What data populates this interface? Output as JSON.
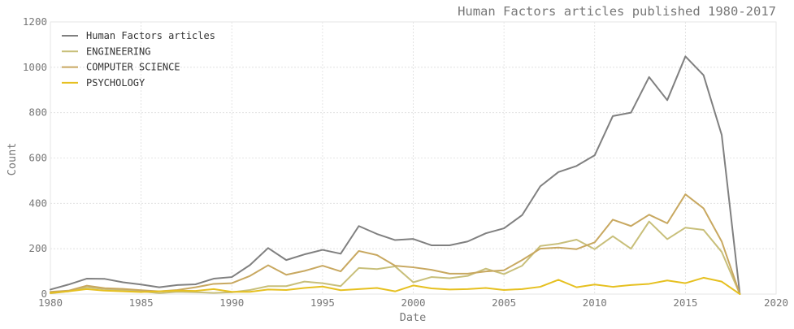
{
  "chart_data": {
    "type": "line",
    "title": "Human Factors articles published 1980-2017",
    "xlabel": "Date",
    "ylabel": "Count",
    "xlim": [
      1980,
      2020
    ],
    "ylim": [
      0,
      1200
    ],
    "xticks": [
      1980,
      1985,
      1990,
      1995,
      2000,
      2005,
      2010,
      2015,
      2020
    ],
    "yticks": [
      0,
      200,
      400,
      600,
      800,
      1000,
      1200
    ],
    "grid": true,
    "legend_position": "top-left",
    "x": [
      1980,
      1981,
      1982,
      1983,
      1984,
      1985,
      1986,
      1987,
      1988,
      1989,
      1990,
      1991,
      1992,
      1993,
      1994,
      1995,
      1996,
      1997,
      1998,
      1999,
      2000,
      2001,
      2002,
      2003,
      2004,
      2005,
      2006,
      2007,
      2008,
      2009,
      2010,
      2011,
      2012,
      2013,
      2014,
      2015,
      2016,
      2017,
      2018
    ],
    "series": [
      {
        "name": "Human Factors articles",
        "color": "#808080",
        "values": [
          20,
          42,
          68,
          67,
          52,
          42,
          30,
          40,
          43,
          68,
          75,
          128,
          203,
          150,
          175,
          195,
          178,
          300,
          265,
          238,
          243,
          215,
          215,
          232,
          268,
          290,
          348,
          475,
          538,
          565,
          612,
          785,
          800,
          957,
          855,
          1048,
          965,
          702,
          0
        ]
      },
      {
        "name": "ENGINEERING",
        "color": "#c8bf7a",
        "values": [
          3,
          12,
          30,
          22,
          18,
          12,
          4,
          10,
          8,
          5,
          8,
          18,
          35,
          35,
          55,
          48,
          35,
          115,
          110,
          122,
          52,
          75,
          70,
          80,
          112,
          88,
          125,
          212,
          222,
          240,
          198,
          255,
          200,
          320,
          242,
          293,
          283,
          186,
          0
        ]
      },
      {
        "name": "COMPUTER SCIENCE",
        "color": "#c8a860",
        "values": [
          10,
          15,
          37,
          26,
          23,
          17,
          12,
          18,
          30,
          45,
          48,
          80,
          127,
          85,
          102,
          125,
          100,
          190,
          172,
          125,
          118,
          107,
          90,
          90,
          100,
          105,
          150,
          200,
          205,
          198,
          228,
          328,
          300,
          350,
          312,
          440,
          378,
          232,
          0
        ]
      },
      {
        "name": "PSYCHOLOGY",
        "color": "#e6c020",
        "values": [
          5,
          12,
          22,
          15,
          12,
          9,
          12,
          15,
          14,
          22,
          10,
          10,
          20,
          18,
          27,
          33,
          17,
          22,
          27,
          12,
          38,
          25,
          20,
          22,
          27,
          18,
          22,
          32,
          63,
          30,
          42,
          32,
          40,
          45,
          60,
          48,
          72,
          55,
          0
        ]
      }
    ]
  }
}
